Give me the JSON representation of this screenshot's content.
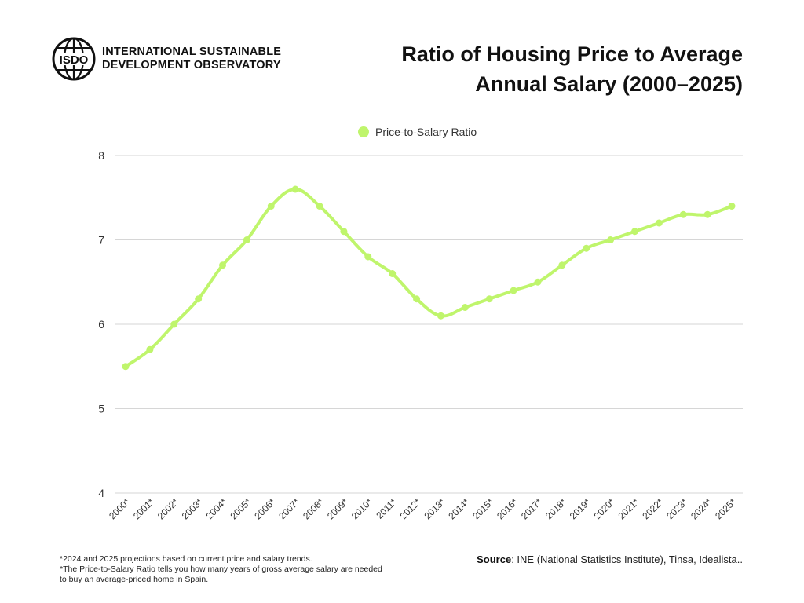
{
  "header": {
    "org_line1": "INTERNATIONAL SUSTAINABLE",
    "org_line2": "DEVELOPMENT OBSERVATORY",
    "logo_text": "ISDO",
    "title_line1": "Ratio of Housing Price to Average",
    "title_line2": "Annual Salary (2000–2025)"
  },
  "footer": {
    "note1": "*2024 and 2025 projections based on current price and salary trends.",
    "note2": "*The Price-to-Salary Ratio tells you how many years of gross average salary are needed to buy an average-priced home in Spain.",
    "source_label": "Source",
    "source_text": ":  INE (National Statistics Institute), Tinsa, Idealista.."
  },
  "chart_data": {
    "type": "line",
    "title": "Ratio of Housing Price to Average Annual Salary (2000–2025)",
    "categories": [
      "2000*",
      "2001*",
      "2002*",
      "2003*",
      "2004*",
      "2005*",
      "2006*",
      "2007*",
      "2008*",
      "2009*",
      "2010*",
      "2011*",
      "2012*",
      "2013*",
      "2014*",
      "2015*",
      "2016*",
      "2017*",
      "2018*",
      "2019*",
      "2020*",
      "2021*",
      "2022*",
      "2023*",
      "2024*",
      "2025*"
    ],
    "series": [
      {
        "name": "Price-to-Salary Ratio",
        "color": "#bff56c",
        "values": [
          5.5,
          5.7,
          6.0,
          6.3,
          6.7,
          7.0,
          7.4,
          7.6,
          7.4,
          7.1,
          6.8,
          6.6,
          6.3,
          6.1,
          6.2,
          6.3,
          6.4,
          6.5,
          6.7,
          6.9,
          7.0,
          7.1,
          7.2,
          7.3,
          7.3,
          7.4
        ]
      }
    ],
    "ylim": [
      4,
      8
    ],
    "yticks": [
      4,
      5,
      6,
      7,
      8
    ],
    "grid": true,
    "legend": "top-center",
    "smooth": true
  }
}
